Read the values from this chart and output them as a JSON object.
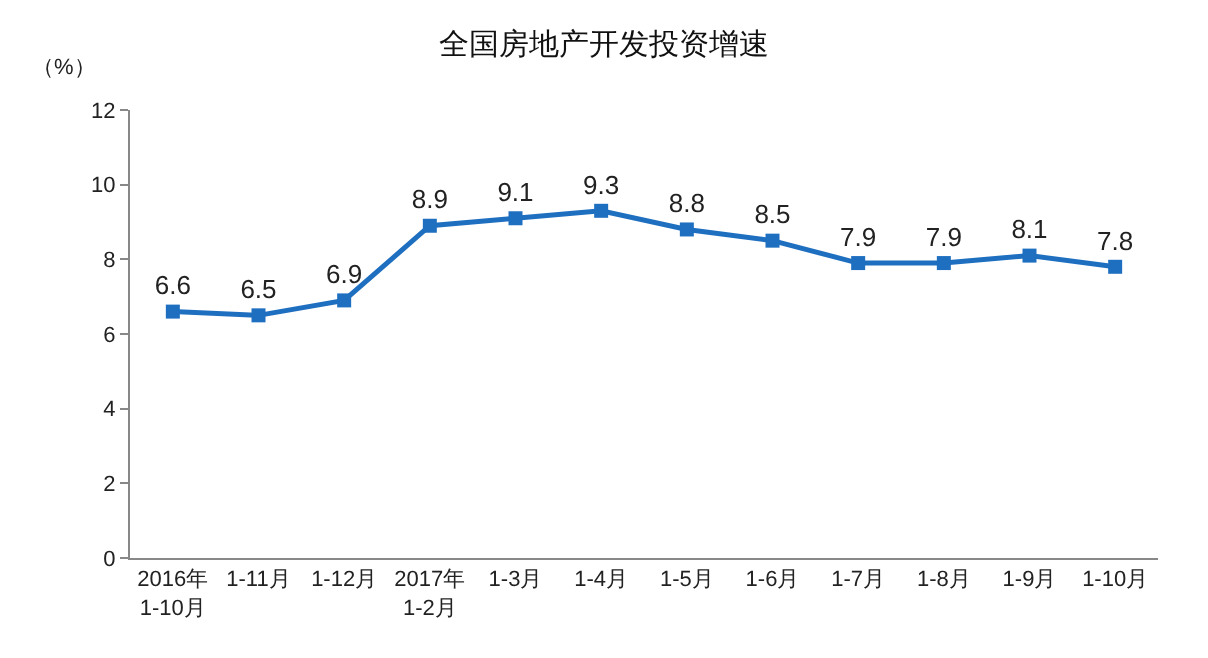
{
  "chart_data": {
    "type": "line",
    "title": "全国房地产开发投资增速",
    "ylabel": "（%）",
    "categories": [
      "2016年\n1-10月",
      "1-11月",
      "1-12月",
      "2017年\n1-2月",
      "1-3月",
      "1-4月",
      "1-5月",
      "1-6月",
      "1-7月",
      "1-8月",
      "1-9月",
      "1-10月"
    ],
    "series": [
      {
        "color": "#1f6fc0",
        "values": [
          6.6,
          6.5,
          6.9,
          8.9,
          9.1,
          9.3,
          8.8,
          8.5,
          7.9,
          7.9,
          8.1,
          7.8
        ]
      }
    ],
    "ylim": [
      0,
      12
    ],
    "yticks": [
      0,
      2,
      4,
      6,
      8,
      10,
      12
    ],
    "grid": false,
    "marker": "square",
    "line_style": "solid",
    "data_labels": true
  }
}
